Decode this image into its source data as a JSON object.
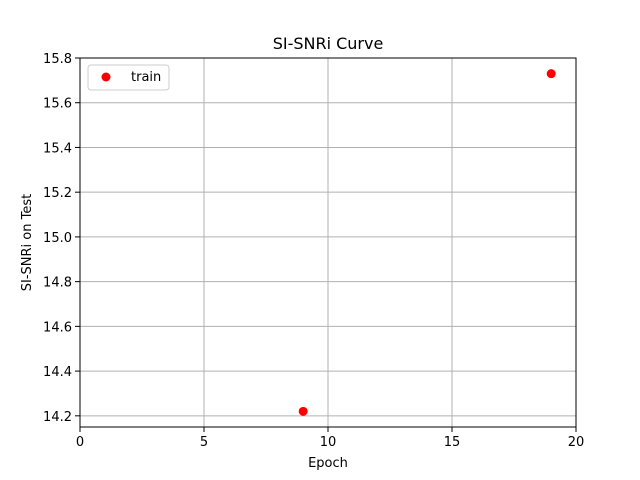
{
  "chart_data": {
    "type": "scatter",
    "title": "SI-SNRi Curve",
    "xlabel": "Epoch",
    "ylabel": "SI-SNRi on Test",
    "xlim": [
      0,
      20
    ],
    "ylim": [
      14.15,
      15.8
    ],
    "xticks": [
      0,
      5,
      10,
      15,
      20
    ],
    "xtick_labels": [
      "0",
      "5",
      "10",
      "15",
      "20"
    ],
    "yticks": [
      14.2,
      14.4,
      14.6,
      14.8,
      15.0,
      15.2,
      15.4,
      15.6,
      15.8
    ],
    "ytick_labels": [
      "14.2",
      "14.4",
      "14.6",
      "14.8",
      "15.0",
      "15.2",
      "15.4",
      "15.6",
      "15.8"
    ],
    "grid": true,
    "legend_position": "upper-left",
    "series": [
      {
        "name": "train",
        "color": "#ff0000",
        "marker": "circle",
        "points": [
          {
            "x": 9,
            "y": 14.22
          },
          {
            "x": 19,
            "y": 15.73
          }
        ]
      }
    ]
  }
}
